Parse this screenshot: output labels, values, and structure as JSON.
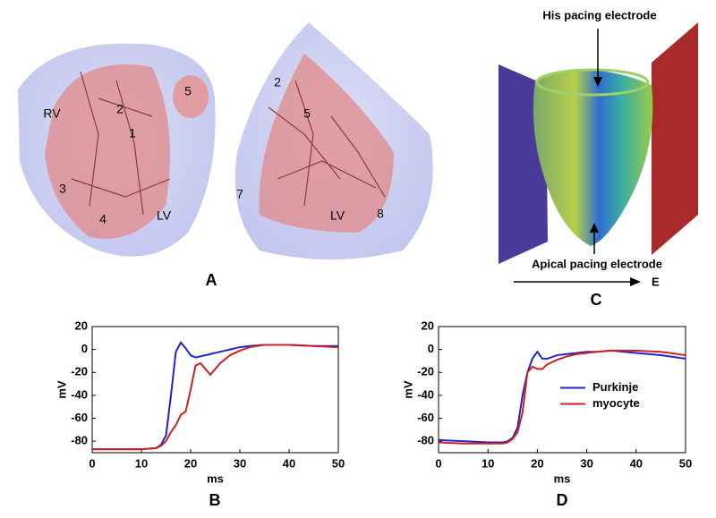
{
  "figure": {
    "panel_labels": [
      "A",
      "B",
      "C",
      "D"
    ],
    "heart_labels_left": [
      "RV",
      "2",
      "1",
      "5",
      "3",
      "4",
      "LV"
    ],
    "heart_labels_right": [
      "2",
      "5",
      "7",
      "LV",
      "8"
    ],
    "panel_c": {
      "top_label": "His pacing electrode",
      "bottom_label": "Apical pacing electrode",
      "field_label": "E"
    }
  },
  "chart_data": [
    {
      "type": "line",
      "xlabel": "ms",
      "ylabel": "mV",
      "x": [
        0,
        5,
        10,
        13,
        14,
        15,
        16,
        17,
        18,
        19,
        20,
        21,
        22,
        24,
        26,
        28,
        30,
        32,
        35,
        40,
        45,
        50
      ],
      "series": [
        {
          "color": "#2222cc",
          "values": [
            -87,
            -87,
            -87,
            -86,
            -83,
            -75,
            -40,
            -2,
            6,
            1,
            -5,
            -7,
            -6,
            -4,
            -2,
            0,
            2,
            3,
            4,
            4,
            3,
            3
          ]
        },
        {
          "color": "#cc2222",
          "values": [
            -87,
            -87,
            -87,
            -86,
            -84,
            -80,
            -72,
            -66,
            -57,
            -54,
            -35,
            -14,
            -12,
            -22,
            -12,
            -5,
            -1,
            2,
            4,
            4,
            3,
            2
          ]
        }
      ],
      "xlim": [
        0,
        50
      ],
      "xticks": [
        0,
        10,
        20,
        30,
        40,
        50
      ],
      "ylim": [
        -90,
        20
      ],
      "yticks": [
        -80,
        -60,
        -40,
        -20,
        0,
        20
      ],
      "grid": false
    },
    {
      "type": "line",
      "xlabel": "ms",
      "ylabel": "mV",
      "x": [
        0,
        5,
        10,
        13,
        14,
        15,
        16,
        17,
        18,
        19,
        20,
        21,
        22,
        24,
        26,
        28,
        30,
        32,
        35,
        40,
        45,
        50
      ],
      "series": [
        {
          "name": "Purkinje",
          "color": "#2222cc",
          "values": [
            -79,
            -80,
            -81,
            -81,
            -80,
            -77,
            -68,
            -40,
            -20,
            -8,
            -2,
            -8,
            -8,
            -5,
            -4,
            -3,
            -2,
            -2,
            -1,
            -3,
            -5,
            -8
          ]
        },
        {
          "name": "myocyte",
          "color": "#cc2222",
          "values": [
            -81,
            -82,
            -82,
            -82,
            -81,
            -78,
            -72,
            -55,
            -20,
            -15,
            -17,
            -17,
            -13,
            -9,
            -6,
            -4,
            -3,
            -2,
            -1,
            -1,
            -2,
            -5
          ]
        }
      ],
      "xlim": [
        0,
        50
      ],
      "xticks": [
        0,
        10,
        20,
        30,
        40,
        50
      ],
      "ylim": [
        -90,
        20
      ],
      "yticks": [
        -80,
        -60,
        -40,
        -20,
        0,
        20
      ],
      "grid": false,
      "legend": "right"
    }
  ]
}
